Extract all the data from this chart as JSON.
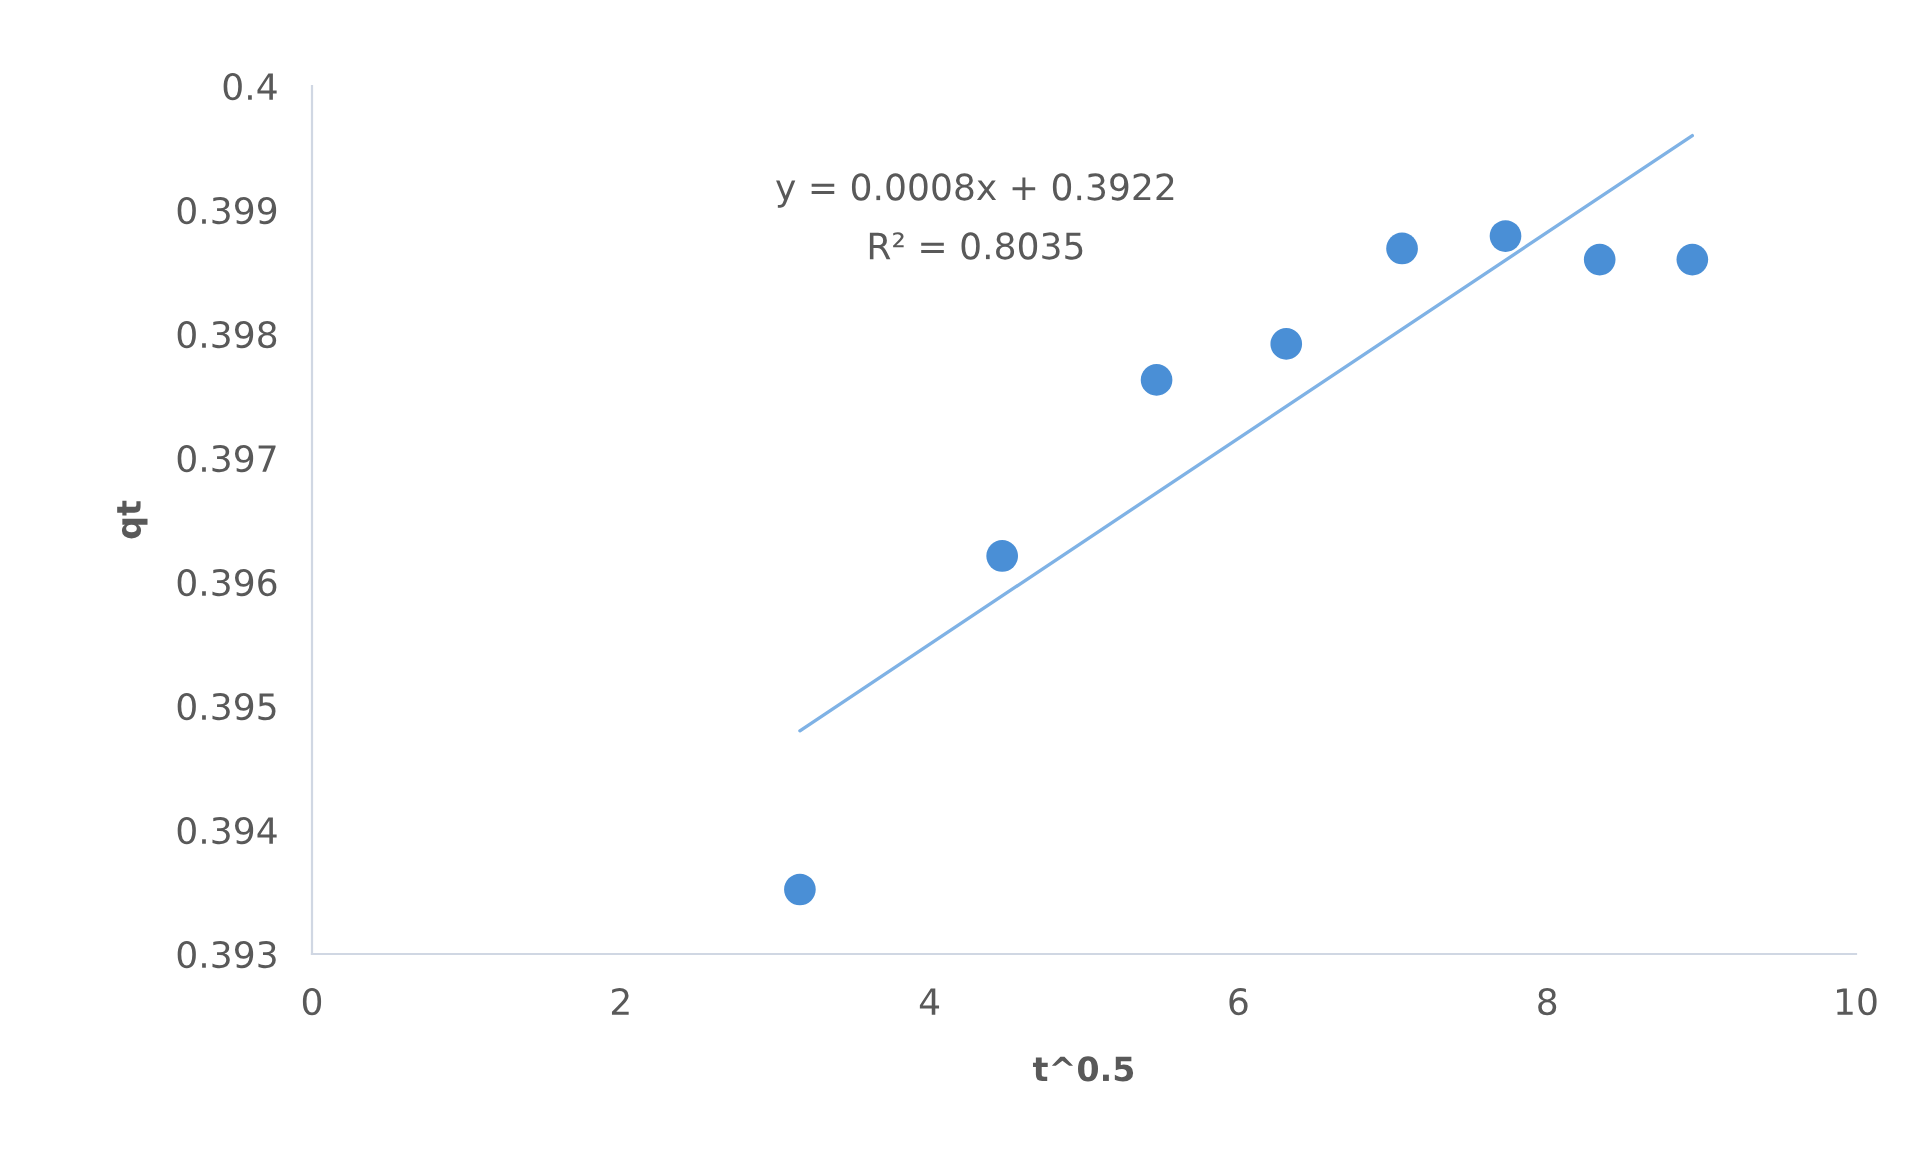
{
  "chart_data": {
    "type": "scatter",
    "xlabel": "t^0.5",
    "ylabel": "qt",
    "x": [
      3.16,
      4.47,
      5.47,
      6.31,
      7.06,
      7.73,
      8.34,
      8.94
    ],
    "series": [
      {
        "color": "#4a8fd6",
        "marker": "circle",
        "values": [
          0.39352,
          0.39621,
          0.39763,
          0.39792,
          0.39869,
          0.39879,
          0.3986,
          0.3986
        ]
      },
      {
        "type": "line",
        "marker": "none",
        "color": "#7fb2e5",
        "x": [
          3.16,
          8.94
        ],
        "values": [
          0.3948,
          0.3996
        ]
      }
    ],
    "annotations": [
      "y = 0.0008x + 0.3922",
      "R² = 0.8035"
    ],
    "xlim": [
      0,
      10
    ],
    "xticks": [
      0,
      2,
      4,
      6,
      8,
      10
    ],
    "ylim": [
      0.393,
      0.4
    ],
    "yticks": [
      0.393,
      0.394,
      0.395,
      0.396,
      0.397,
      0.398,
      0.399,
      0.4
    ],
    "grid": false,
    "legend": false
  }
}
